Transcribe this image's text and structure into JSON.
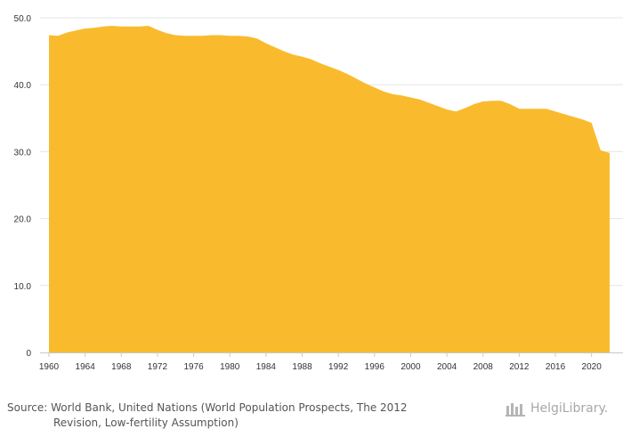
{
  "chart_data": {
    "type": "area",
    "title": "",
    "xlabel": "",
    "ylabel": "",
    "ylim": [
      0,
      50
    ],
    "xlim": [
      1960,
      2022
    ],
    "y_ticks": [
      "0",
      "10.0",
      "20.0",
      "30.0",
      "40.0",
      "50.0"
    ],
    "y_tick_values": [
      0,
      10,
      20,
      30,
      40,
      50
    ],
    "x_ticks": [
      "1960",
      "1964",
      "1968",
      "1972",
      "1976",
      "1980",
      "1984",
      "1988",
      "1992",
      "1996",
      "2000",
      "2004",
      "2008",
      "2012",
      "2016",
      "2020"
    ],
    "x_tick_values": [
      1960,
      1964,
      1968,
      1972,
      1976,
      1980,
      1984,
      1988,
      1992,
      1996,
      2000,
      2004,
      2008,
      2012,
      2016,
      2020
    ],
    "grid": true,
    "fill_color": "#f9bb2d",
    "series": [
      {
        "name": "value",
        "x": [
          1960,
          1961,
          1962,
          1963,
          1964,
          1965,
          1966,
          1967,
          1968,
          1969,
          1970,
          1971,
          1972,
          1973,
          1974,
          1975,
          1976,
          1977,
          1978,
          1979,
          1980,
          1981,
          1982,
          1983,
          1984,
          1985,
          1986,
          1987,
          1988,
          1989,
          1990,
          1991,
          1992,
          1993,
          1994,
          1995,
          1996,
          1997,
          1998,
          1999,
          2000,
          2001,
          2002,
          2003,
          2004,
          2005,
          2006,
          2007,
          2008,
          2009,
          2010,
          2011,
          2012,
          2013,
          2014,
          2015,
          2016,
          2017,
          2018,
          2019,
          2020,
          2021,
          2022
        ],
        "values": [
          47.4,
          47.3,
          47.8,
          48.1,
          48.4,
          48.5,
          48.7,
          48.8,
          48.7,
          48.7,
          48.7,
          48.8,
          48.2,
          47.7,
          47.4,
          47.3,
          47.3,
          47.3,
          47.4,
          47.4,
          47.3,
          47.3,
          47.2,
          46.9,
          46.2,
          45.6,
          45.0,
          44.5,
          44.2,
          43.8,
          43.2,
          42.7,
          42.2,
          41.6,
          40.9,
          40.2,
          39.6,
          39.0,
          38.6,
          38.4,
          38.1,
          37.8,
          37.3,
          36.8,
          36.3,
          36.0,
          36.5,
          37.1,
          37.5,
          37.6,
          37.6,
          37.1,
          36.4,
          36.4,
          36.4,
          36.4,
          36.0,
          35.6,
          35.2,
          34.8,
          34.3,
          30.2,
          29.8
        ]
      }
    ]
  },
  "footer": {
    "source_line1": "Source: World Bank, United Nations (World Population Prospects, The 2012",
    "source_line2": "Revision, Low-fertility Assumption)",
    "logo_text": "HelgiLibrary."
  }
}
